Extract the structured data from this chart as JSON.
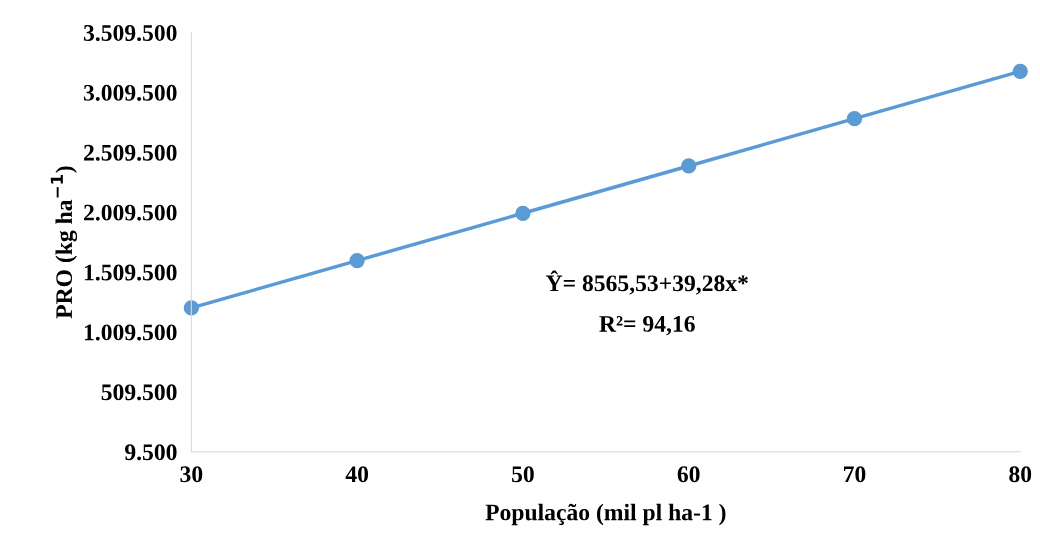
{
  "chart_data": {
    "type": "line",
    "xlabel": "População (mil pl ha-1 )",
    "ylabel": "PRO (kg ha$^{−1}$)",
    "x": [
      30,
      40,
      50,
      60,
      70,
      80
    ],
    "series": [
      {
        "color": "#5b9bd5",
        "values": [
          1210000,
          1605000,
          2000000,
          2395000,
          2790000,
          3185000
        ]
      }
    ],
    "xlim": [
      30,
      80
    ],
    "xticks": [
      30,
      40,
      50,
      60,
      70,
      80
    ],
    "ylim": [
      9500,
      3509500
    ],
    "yticks": [
      {
        "value": 9500,
        "label": "9.500"
      },
      {
        "value": 509500,
        "label": "509.500"
      },
      {
        "value": 1009500,
        "label": "1.009.500"
      },
      {
        "value": 1509500,
        "label": "1.509.500"
      },
      {
        "value": 2009500,
        "label": "2.009.500"
      },
      {
        "value": 2509500,
        "label": "2.509.500"
      },
      {
        "value": 3009500,
        "label": "3.009.500"
      },
      {
        "value": 3509500,
        "label": "3.509.500"
      }
    ],
    "annotations": [
      "Ŷ= 8565,53+39,28x*",
      "R²= 94,16"
    ],
    "grid": false,
    "legend": false,
    "marker": "circle",
    "line_style": "solid"
  }
}
